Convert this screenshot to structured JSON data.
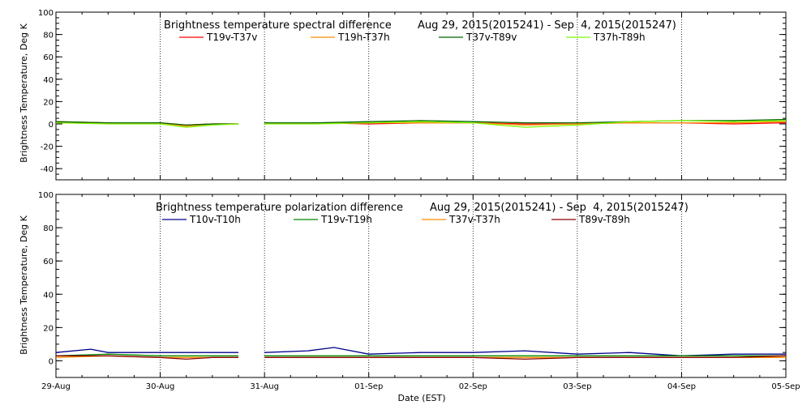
{
  "chart_data": [
    {
      "type": "line",
      "title": "Brightness temperature spectral difference",
      "date_range": "Aug 29, 2015(2015241) - Sep  4, 2015(2015247)",
      "ylabel": "Brightness Temperature, Deg K",
      "xlabel": "",
      "ylim": [
        -50,
        100
      ],
      "yticks": [
        "-40",
        "-20",
        "0",
        "20",
        "40",
        "60",
        "80",
        "100"
      ],
      "xlim": [
        "2015-08-29",
        "2015-09-05"
      ],
      "grid": "vertical dotted lines at each day",
      "legend_position": "top",
      "data_gap": [
        "2015-08-30T18:00",
        "2015-08-31T00:00"
      ],
      "series": [
        {
          "name": "T19v-T37v",
          "color": "#ff0000",
          "x": [
            "2015-08-29T00:00",
            "2015-08-29T12:00",
            "2015-08-30T00:00",
            "2015-08-30T06:00",
            "2015-08-30T12:00",
            "2015-08-30T18:00",
            "2015-08-31T00:00",
            "2015-08-31T12:00",
            "2015-09-01T00:00",
            "2015-09-01T12:00",
            "2015-09-02T00:00",
            "2015-09-02T12:00",
            "2015-09-03T00:00",
            "2015-09-03T12:00",
            "2015-09-04T00:00",
            "2015-09-04T12:00",
            "2015-09-05T00:00"
          ],
          "values": [
            1,
            1,
            1,
            -1,
            0,
            0,
            1,
            1,
            0,
            1,
            1,
            0,
            0,
            1,
            1,
            0,
            1
          ]
        },
        {
          "name": "T19h-T37h",
          "color": "#ff8c00",
          "x": [
            "2015-08-29T00:00",
            "2015-08-29T12:00",
            "2015-08-30T00:00",
            "2015-08-30T06:00",
            "2015-08-30T12:00",
            "2015-08-30T18:00",
            "2015-08-31T00:00",
            "2015-08-31T12:00",
            "2015-09-01T00:00",
            "2015-09-01T12:00",
            "2015-09-02T00:00",
            "2015-09-02T12:00",
            "2015-09-03T00:00",
            "2015-09-03T12:00",
            "2015-09-04T00:00",
            "2015-09-04T12:00",
            "2015-09-05T00:00"
          ],
          "values": [
            2,
            1,
            1,
            -2,
            0,
            0,
            1,
            1,
            1,
            1,
            1,
            -1,
            0,
            1,
            1,
            1,
            2
          ]
        },
        {
          "name": "T37v-T89v",
          "color": "#006400",
          "x": [
            "2015-08-29T00:00",
            "2015-08-29T12:00",
            "2015-08-30T00:00",
            "2015-08-30T06:00",
            "2015-08-30T12:00",
            "2015-08-30T18:00",
            "2015-08-31T00:00",
            "2015-08-31T12:00",
            "2015-09-01T00:00",
            "2015-09-01T12:00",
            "2015-09-02T00:00",
            "2015-09-02T12:00",
            "2015-09-03T00:00",
            "2015-09-03T12:00",
            "2015-09-04T00:00",
            "2015-09-04T12:00",
            "2015-09-05T00:00"
          ],
          "values": [
            2,
            1,
            1,
            -1,
            0,
            0,
            1,
            1,
            2,
            3,
            2,
            1,
            1,
            2,
            3,
            3,
            4
          ]
        },
        {
          "name": "T37h-T89h",
          "color": "#7cfc00",
          "x": [
            "2015-08-29T00:00",
            "2015-08-29T12:00",
            "2015-08-30T00:00",
            "2015-08-30T06:00",
            "2015-08-30T12:00",
            "2015-08-30T18:00",
            "2015-08-31T00:00",
            "2015-08-31T12:00",
            "2015-09-01T00:00",
            "2015-09-01T12:00",
            "2015-09-02T00:00",
            "2015-09-02T12:00",
            "2015-09-03T00:00",
            "2015-09-03T12:00",
            "2015-09-04T00:00",
            "2015-09-04T12:00",
            "2015-09-05T00:00"
          ],
          "values": [
            1,
            0,
            0,
            -3,
            -1,
            0,
            0,
            0,
            1,
            2,
            1,
            -3,
            -1,
            2,
            3,
            2,
            3
          ]
        }
      ]
    },
    {
      "type": "line",
      "title": "Brightness temperature polarization difference",
      "date_range": "Aug 29, 2015(2015241) - Sep  4, 2015(2015247)",
      "ylabel": "Brightness Temperature, Deg K",
      "xlabel": "Date (EST)",
      "ylim": [
        -10,
        100
      ],
      "yticks": [
        "0",
        "20",
        "40",
        "60",
        "80",
        "100"
      ],
      "xlim": [
        "2015-08-29",
        "2015-09-05"
      ],
      "xticks": [
        "29-Aug",
        "30-Aug",
        "31-Aug",
        "01-Sep",
        "02-Sep",
        "03-Sep",
        "04-Sep",
        "05-Sep"
      ],
      "grid": "vertical dotted lines at each day",
      "legend_position": "top",
      "data_gap": [
        "2015-08-30T18:00",
        "2015-08-31T00:00"
      ],
      "series": [
        {
          "name": "T10v-T10h",
          "color": "#00008b",
          "x": [
            "2015-08-29T00:00",
            "2015-08-29T08:00",
            "2015-08-29T12:00",
            "2015-08-30T00:00",
            "2015-08-30T12:00",
            "2015-08-30T18:00",
            "2015-08-31T00:00",
            "2015-08-31T10:00",
            "2015-08-31T16:00",
            "2015-09-01T00:00",
            "2015-09-01T12:00",
            "2015-09-02T00:00",
            "2015-09-02T12:00",
            "2015-09-03T00:00",
            "2015-09-03T12:00",
            "2015-09-04T00:00",
            "2015-09-04T12:00",
            "2015-09-05T00:00"
          ],
          "values": [
            5,
            7,
            5,
            5,
            5,
            5,
            5,
            6,
            8,
            4,
            5,
            5,
            6,
            4,
            5,
            3,
            4,
            4
          ]
        },
        {
          "name": "T19v-T19h",
          "color": "#008b00",
          "x": [
            "2015-08-29T00:00",
            "2015-08-29T12:00",
            "2015-08-30T00:00",
            "2015-08-30T12:00",
            "2015-08-30T18:00",
            "2015-08-31T00:00",
            "2015-08-31T12:00",
            "2015-09-01T00:00",
            "2015-09-01T12:00",
            "2015-09-02T00:00",
            "2015-09-02T12:00",
            "2015-09-03T00:00",
            "2015-09-03T12:00",
            "2015-09-04T00:00",
            "2015-09-04T12:00",
            "2015-09-05T00:00"
          ],
          "values": [
            3,
            4,
            3,
            3,
            3,
            3,
            3,
            3,
            3,
            3,
            3,
            3,
            3,
            3,
            3,
            3
          ]
        },
        {
          "name": "T37v-T37h",
          "color": "#ff8c00",
          "x": [
            "2015-08-29T00:00",
            "2015-08-29T12:00",
            "2015-08-30T00:00",
            "2015-08-30T12:00",
            "2015-08-30T18:00",
            "2015-08-31T00:00",
            "2015-08-31T12:00",
            "2015-09-01T00:00",
            "2015-09-01T12:00",
            "2015-09-02T00:00",
            "2015-09-02T12:00",
            "2015-09-03T00:00",
            "2015-09-03T12:00",
            "2015-09-04T00:00",
            "2015-09-04T12:00",
            "2015-09-05T00:00"
          ],
          "values": [
            2,
            3,
            2,
            2,
            2,
            2,
            2,
            2,
            2,
            2,
            2,
            2,
            2,
            2,
            2,
            2
          ]
        },
        {
          "name": "T89v-T89h",
          "color": "#8b0000",
          "x": [
            "2015-08-29T00:00",
            "2015-08-29T12:00",
            "2015-08-30T00:00",
            "2015-08-30T06:00",
            "2015-08-30T12:00",
            "2015-08-30T18:00",
            "2015-08-31T00:00",
            "2015-08-31T12:00",
            "2015-09-01T00:00",
            "2015-09-01T12:00",
            "2015-09-02T00:00",
            "2015-09-02T12:00",
            "2015-09-03T00:00",
            "2015-09-03T12:00",
            "2015-09-04T00:00",
            "2015-09-04T12:00",
            "2015-09-05T00:00"
          ],
          "values": [
            3,
            3,
            2,
            1,
            2,
            2,
            2,
            2,
            2,
            2,
            2,
            1,
            2,
            2,
            2,
            2,
            3
          ]
        }
      ]
    }
  ]
}
